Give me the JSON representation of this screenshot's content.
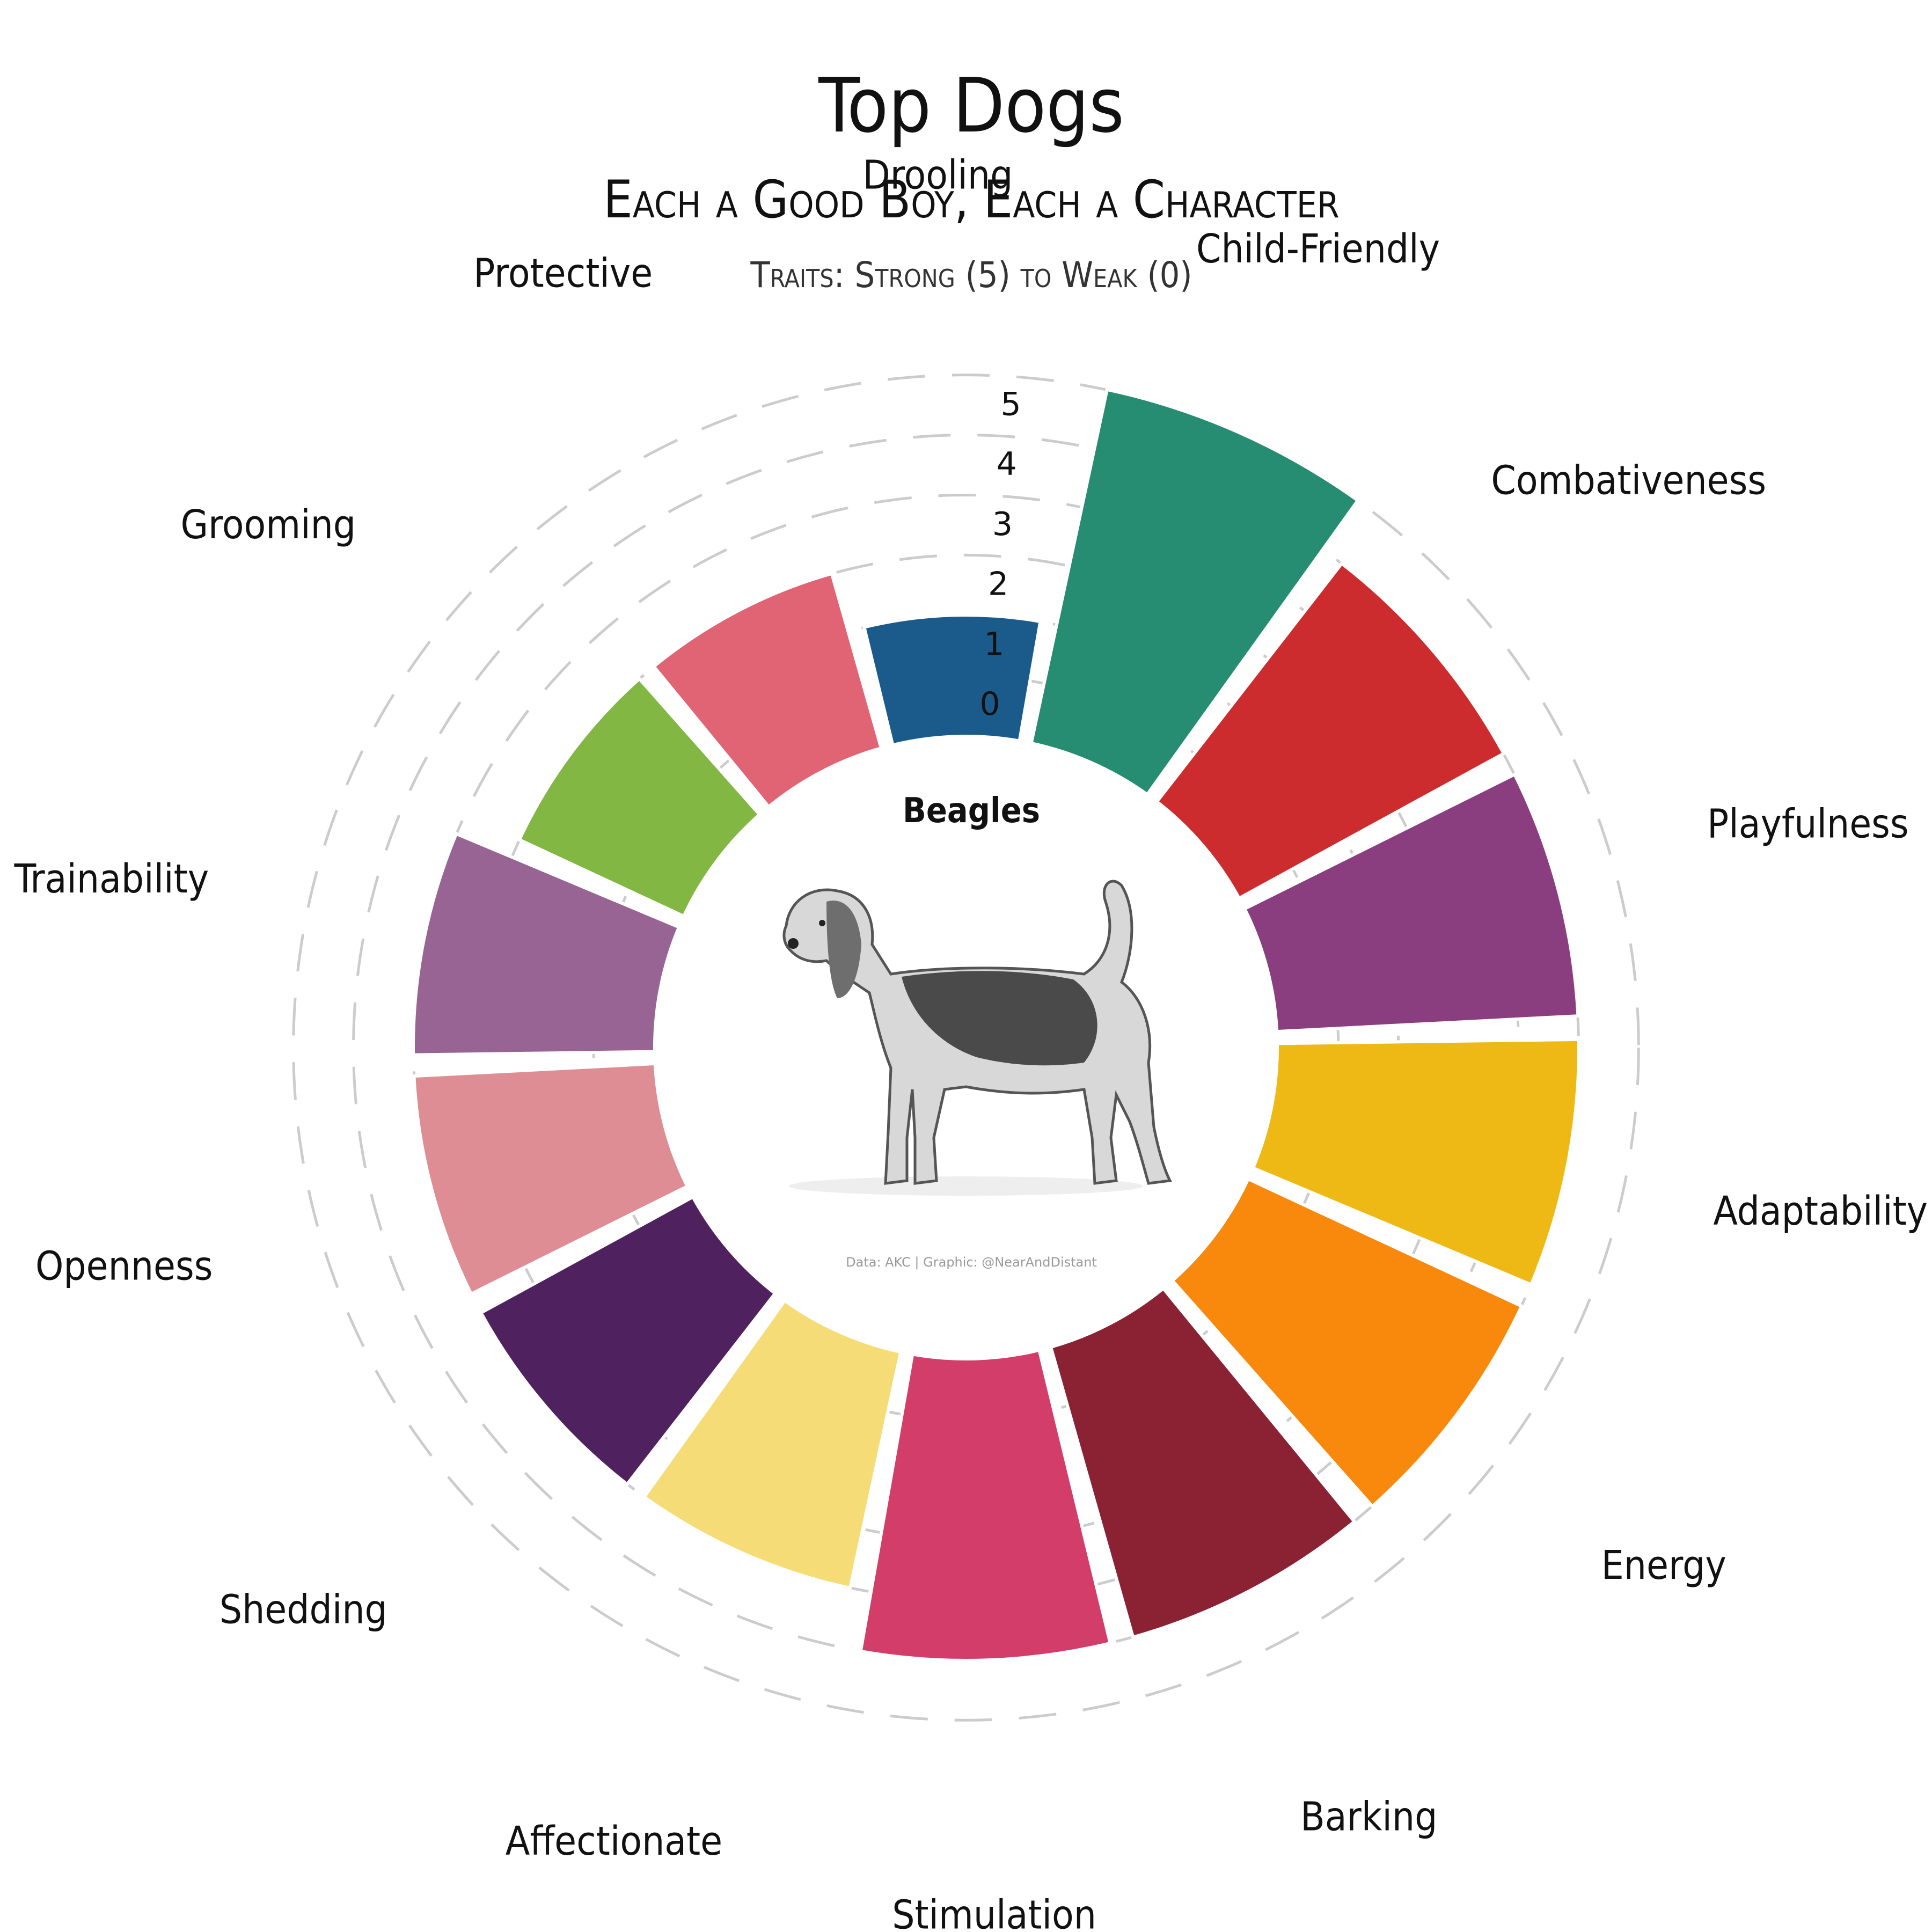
{
  "title": "Top Dogs",
  "subtitle": "Each a Good Boy, Each a Character",
  "note": "Traits: Strong (5) to Weak (0)",
  "center": {
    "breed": "Beagles",
    "credit": "Data: AKC | Graphic: @NearAndDistant"
  },
  "chart_data": {
    "type": "radial-bar",
    "scale_ticks": [
      "0",
      "1",
      "2",
      "3",
      "4",
      "5"
    ],
    "ylim": [
      0,
      5
    ],
    "grid": true,
    "categories": [
      {
        "name": "Child-Friendly",
        "value": 5,
        "color": "#268c72"
      },
      {
        "name": "Combativeness",
        "value": 4,
        "color": "#cc2c2e"
      },
      {
        "name": "Playfulness",
        "value": 4,
        "color": "#8a3d7f"
      },
      {
        "name": "Adaptability",
        "value": 4,
        "color": "#eeb914"
      },
      {
        "name": "Energy",
        "value": 4,
        "color": "#f8890c"
      },
      {
        "name": "Barking",
        "value": 4,
        "color": "#8a2233"
      },
      {
        "name": "Stimulation",
        "value": 4,
        "color": "#d23e69"
      },
      {
        "name": "Affectionate",
        "value": 3,
        "color": "#f6dc76"
      },
      {
        "name": "Shedding",
        "value": 3,
        "color": "#50215f"
      },
      {
        "name": "Openness",
        "value": 3,
        "color": "#df8d95"
      },
      {
        "name": "Trainability",
        "value": 3,
        "color": "#986493"
      },
      {
        "name": "Grooming",
        "value": 2,
        "color": "#82b743"
      },
      {
        "name": "Protective",
        "value": 2,
        "color": "#e06474"
      },
      {
        "name": "Drooling",
        "value": 1,
        "color": "#1b5b8c"
      }
    ]
  }
}
